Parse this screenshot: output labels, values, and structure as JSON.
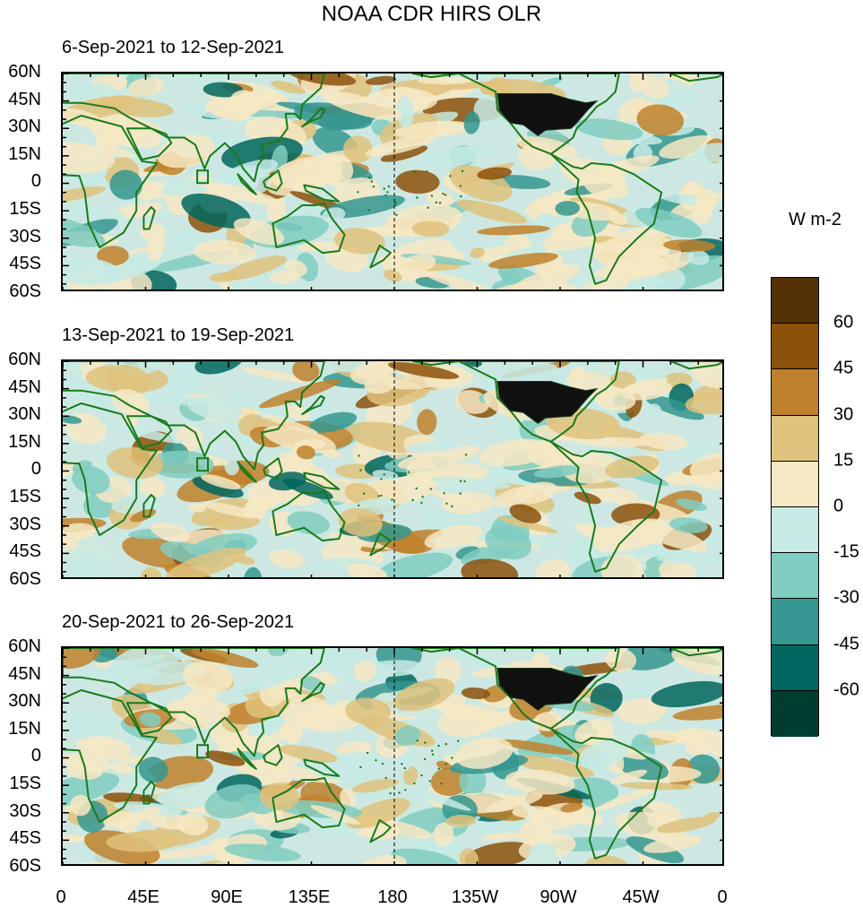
{
  "title": "NOAA CDR HIRS OLR",
  "panels": [
    {
      "label": "6-Sep-2021 to 12-Sep-2021"
    },
    {
      "label": "13-Sep-2021 to 19-Sep-2021"
    },
    {
      "label": "20-Sep-2021 to 26-Sep-2021"
    }
  ],
  "lat_labels": [
    "60N",
    "45N",
    "30N",
    "15N",
    "0",
    "15S",
    "30S",
    "45S",
    "60S"
  ],
  "lon_labels": [
    "0",
    "45E",
    "90E",
    "135E",
    "180",
    "135W",
    "90W",
    "45W",
    "0"
  ],
  "colorbar": {
    "title": "W m-2",
    "labels": [
      "60",
      "45",
      "30",
      "15",
      "0",
      "-15",
      "-30",
      "-45",
      "-60"
    ],
    "colors": [
      "#543005",
      "#8c510a",
      "#bf812d",
      "#dfc27d",
      "#f6e8c3",
      "#c7eae5",
      "#80cdc1",
      "#35978f",
      "#01665e",
      "#003c30"
    ]
  },
  "colors": {
    "land_outline": "#1a7a1a",
    "us_fill": "#111111",
    "background": "#cde8e2"
  }
}
